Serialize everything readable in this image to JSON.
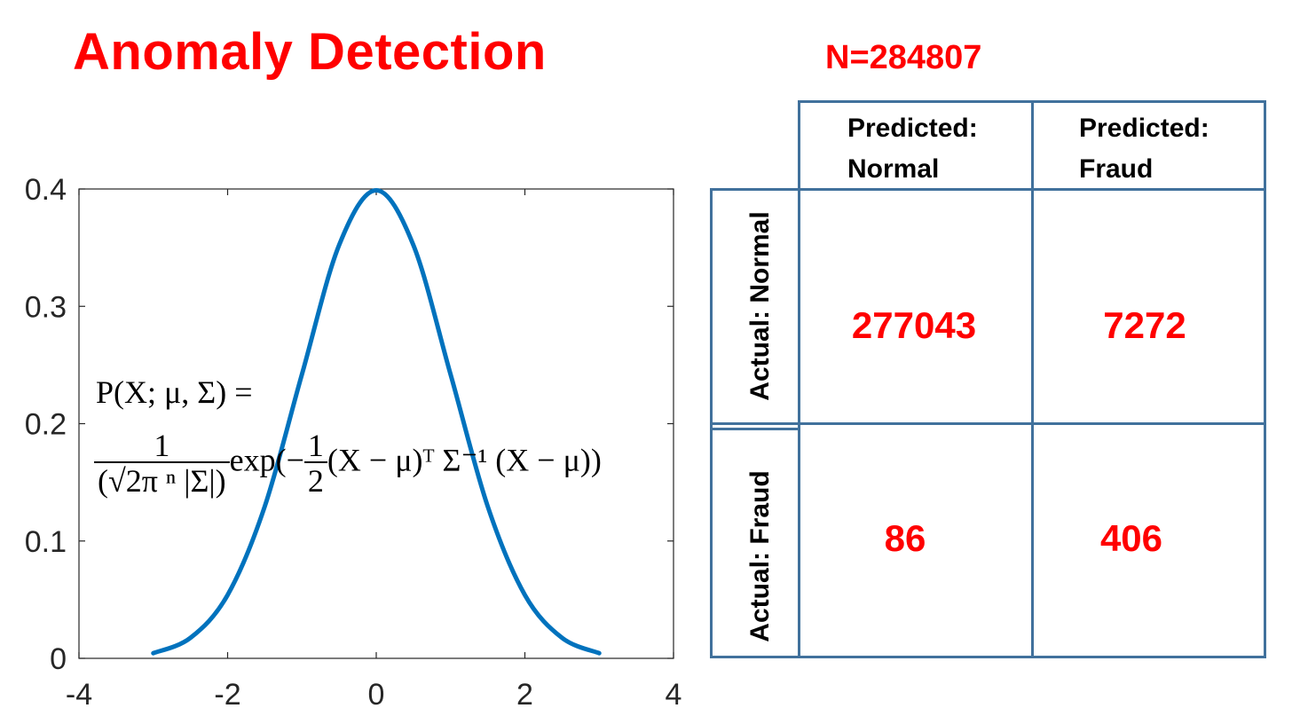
{
  "title": "Anomaly Detection",
  "sample_count": "N=284807",
  "formula": {
    "line1": "P(X; μ, Σ) =",
    "numerator": "1",
    "denominator": "(√2π ⁿ |Σ|)",
    "exp_part": "exp(−",
    "half_num": "1",
    "half_den": "2",
    "tail": "(X − μ)ᵀ Σ⁻¹ (X − μ))"
  },
  "chart_data": {
    "type": "line",
    "title": "",
    "xlabel": "",
    "ylabel": "",
    "xlim": [
      -4,
      4
    ],
    "ylim": [
      0,
      0.4
    ],
    "xticks": [
      "-4",
      "-2",
      "0",
      "2",
      "4"
    ],
    "yticks": [
      "0",
      "0.1",
      "0.2",
      "0.3",
      "0.4"
    ],
    "series": [
      {
        "color": "#0072bd",
        "x": [
          -3,
          -2.5,
          -2,
          -1.5,
          -1,
          -0.5,
          0,
          0.5,
          1,
          1.5,
          2,
          2.5,
          3
        ],
        "y": [
          0.0044,
          0.0175,
          0.054,
          0.1295,
          0.242,
          0.3521,
          0.3989,
          0.3521,
          0.242,
          0.1295,
          0.054,
          0.0175,
          0.0044
        ]
      }
    ]
  },
  "confusion_matrix": {
    "col_headers": [
      "Predicted:\nNormal",
      "Predicted:\nFraud"
    ],
    "row_headers": [
      "Actual: Normal",
      "Actual: Fraud"
    ],
    "values": [
      [
        "277043",
        "7272"
      ],
      [
        "86",
        "406"
      ]
    ]
  },
  "colors": {
    "accent": "#ff0000",
    "grid_border": "#41719c",
    "curve": "#0072bd"
  }
}
